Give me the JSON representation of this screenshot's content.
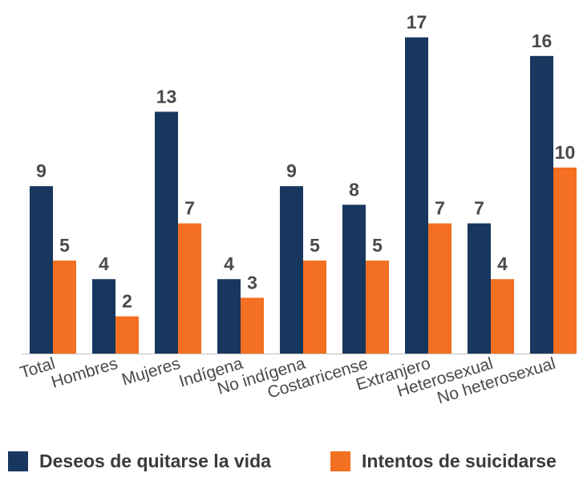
{
  "chart_data": {
    "type": "bar",
    "title": "",
    "xlabel": "",
    "ylabel": "",
    "ylim": [
      0,
      18
    ],
    "grid": false,
    "legend_position": "bottom",
    "categories": [
      "Total",
      "Hombres",
      "Mujeres",
      "Indígena",
      "No indígena",
      "Costarricense",
      "Extranjero",
      "Heterosexual",
      "No heterosexual"
    ],
    "series": [
      {
        "name": "Deseos de quitarse la vida",
        "color": "#17375e",
        "values": [
          9,
          4,
          13,
          4,
          9,
          8,
          17,
          7,
          16
        ]
      },
      {
        "name": "Intentos de suicidarse",
        "color": "#f36f21",
        "values": [
          5,
          2,
          7,
          3,
          5,
          5,
          7,
          4,
          10
        ]
      }
    ]
  }
}
